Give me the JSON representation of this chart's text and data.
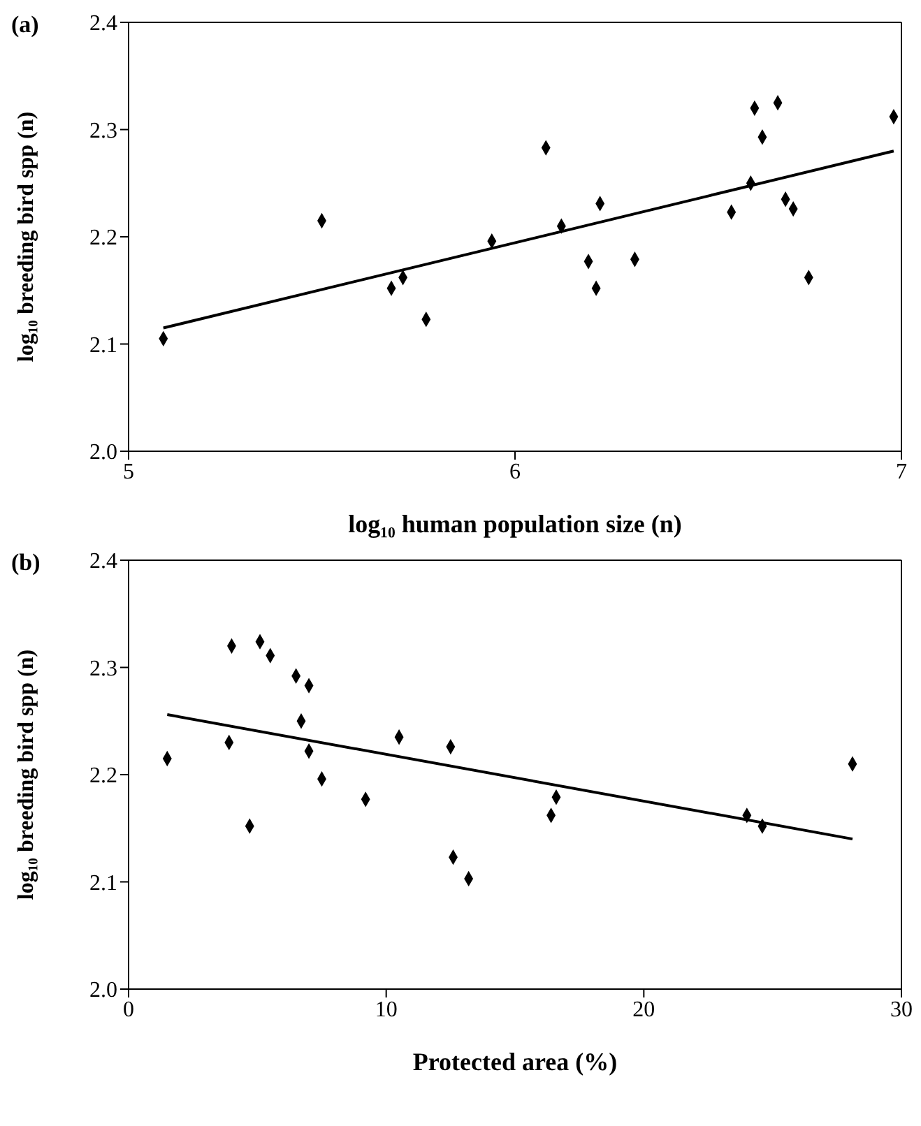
{
  "chart_data": [
    {
      "type": "scatter",
      "title": "(a)",
      "xlabel": "log₁₀ human population size (n)",
      "ylabel": "log₁₀ breeding bird spp (n)",
      "xlim": [
        5,
        7
      ],
      "xticks": [
        5,
        6,
        7
      ],
      "ylim": [
        2.0,
        2.4
      ],
      "yticks": [
        {
          "value": 2.0,
          "label": "2.0"
        },
        2.1,
        2.2,
        2.3,
        2.4
      ],
      "grid": false,
      "series": [
        {
          "marker": "diamond",
          "color": "#000000",
          "x": [
            5.09,
            5.5,
            5.68,
            5.71,
            5.77,
            5.94,
            6.08,
            6.12,
            6.19,
            6.21,
            6.22,
            6.31,
            6.56,
            6.61,
            6.62,
            6.64,
            6.68,
            6.7,
            6.72,
            6.76,
            6.98
          ],
          "values": [
            2.105,
            2.215,
            2.152,
            2.162,
            2.123,
            2.196,
            2.283,
            2.21,
            2.177,
            2.152,
            2.231,
            2.179,
            2.223,
            2.25,
            2.32,
            2.293,
            2.325,
            2.235,
            2.226,
            2.162,
            2.312
          ]
        },
        {
          "type": "line",
          "marker": "none",
          "color": "#000000",
          "x": [
            5.09,
            6.98
          ],
          "values": [
            2.115,
            2.28
          ]
        }
      ]
    },
    {
      "type": "scatter",
      "title": "(b)",
      "xlabel": "Protected area (%)",
      "ylabel": "log₁₀ breeding bird spp (n)",
      "xlim": [
        0,
        30
      ],
      "xticks": [
        0,
        10,
        20,
        30
      ],
      "ylim": [
        2.0,
        2.4
      ],
      "yticks": [
        {
          "value": 2.0,
          "label": "2.0"
        },
        2.1,
        2.2,
        2.3,
        2.4
      ],
      "grid": false,
      "series": [
        {
          "marker": "diamond",
          "color": "#000000",
          "x": [
            1.5,
            3.9,
            4.0,
            4.7,
            5.1,
            5.5,
            6.5,
            6.7,
            7.0,
            7.0,
            7.5,
            9.2,
            10.5,
            12.5,
            12.6,
            13.2,
            16.4,
            16.6,
            24.0,
            24.6,
            28.1
          ],
          "values": [
            2.215,
            2.23,
            2.32,
            2.152,
            2.324,
            2.311,
            2.292,
            2.25,
            2.283,
            2.222,
            2.196,
            2.177,
            2.235,
            2.226,
            2.123,
            2.103,
            2.162,
            2.179,
            2.162,
            2.152,
            2.21
          ]
        },
        {
          "type": "line",
          "marker": "none",
          "color": "#000000",
          "x": [
            1.5,
            28.1
          ],
          "values": [
            2.256,
            2.14
          ]
        }
      ]
    }
  ]
}
